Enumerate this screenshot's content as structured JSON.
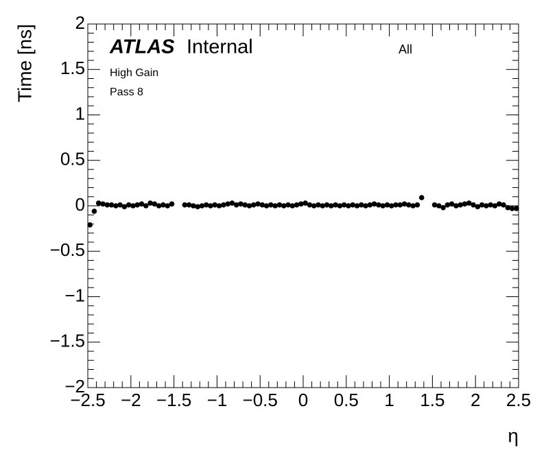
{
  "chart_data": {
    "type": "scatter",
    "ylabel": "Time [ns]",
    "xlabel": "η",
    "annotations": {
      "experiment": "ATLAS",
      "status": "Internal",
      "selection": "All",
      "gain": "High Gain",
      "pass": "Pass 8"
    },
    "xlim": [
      -2.5,
      2.5
    ],
    "ylim": [
      -2,
      2
    ],
    "xticks": [
      {
        "value": -2.5,
        "label": "−2.5"
      },
      {
        "value": -2,
        "label": "−2"
      },
      {
        "value": -1.5,
        "label": "−1.5"
      },
      {
        "value": -1,
        "label": "−1"
      },
      {
        "value": -0.5,
        "label": "−0.5"
      },
      0,
      0.5,
      1,
      1.5,
      2,
      2.5
    ],
    "yticks": [
      {
        "value": -2,
        "label": "−2"
      },
      {
        "value": -1.5,
        "label": "−1.5"
      },
      {
        "value": -1,
        "label": "−1"
      },
      {
        "value": -0.5,
        "label": "−0.5"
      },
      0,
      0.5,
      1,
      1.5,
      2
    ],
    "series": [
      {
        "color": "#000000",
        "x": [
          -2.475,
          -2.425,
          -2.375,
          -2.325,
          -2.275,
          -2.225,
          -2.175,
          -2.125,
          -2.075,
          -2.025,
          -1.975,
          -1.925,
          -1.875,
          -1.825,
          -1.775,
          -1.725,
          -1.675,
          -1.625,
          -1.575,
          -1.525,
          -1.375,
          -1.325,
          -1.275,
          -1.225,
          -1.175,
          -1.125,
          -1.075,
          -1.025,
          -0.975,
          -0.925,
          -0.875,
          -0.825,
          -0.775,
          -0.725,
          -0.675,
          -0.625,
          -0.575,
          -0.525,
          -0.475,
          -0.425,
          -0.375,
          -0.325,
          -0.275,
          -0.225,
          -0.175,
          -0.125,
          -0.075,
          -0.025,
          0.025,
          0.075,
          0.125,
          0.175,
          0.225,
          0.275,
          0.325,
          0.375,
          0.425,
          0.475,
          0.525,
          0.575,
          0.625,
          0.675,
          0.725,
          0.775,
          0.825,
          0.875,
          0.925,
          0.975,
          1.025,
          1.075,
          1.125,
          1.175,
          1.225,
          1.275,
          1.325,
          1.375,
          1.525,
          1.575,
          1.625,
          1.675,
          1.725,
          1.775,
          1.825,
          1.875,
          1.925,
          1.975,
          2.025,
          2.075,
          2.125,
          2.175,
          2.225,
          2.275,
          2.325,
          2.375,
          2.425,
          2.475
        ],
        "values": [
          -0.21,
          -0.06,
          0.03,
          0.02,
          0.01,
          0.01,
          0,
          0.01,
          -0.01,
          0.01,
          0,
          0.01,
          0.02,
          0,
          0.03,
          0.02,
          0,
          0.01,
          0,
          0.02,
          0.01,
          0.01,
          0,
          -0.01,
          0,
          0.01,
          0,
          0.01,
          0,
          0.01,
          0.02,
          0.03,
          0.01,
          0.02,
          0.01,
          0,
          0.01,
          0.02,
          0.01,
          0,
          0.01,
          0,
          0.01,
          0,
          0.01,
          0,
          0.01,
          0.02,
          0.03,
          0.01,
          0,
          0.01,
          0,
          0.01,
          0,
          0.01,
          0,
          0.01,
          0,
          0.01,
          0,
          0.01,
          0,
          0.01,
          0.02,
          0.01,
          0,
          0.01,
          0,
          0.01,
          0.01,
          0.02,
          0.01,
          0,
          0.01,
          0.09,
          0.01,
          0,
          -0.02,
          0.01,
          0.02,
          0,
          0.01,
          0.02,
          0.03,
          0.01,
          -0.01,
          0.01,
          0,
          0.01,
          0,
          0.02,
          0.01,
          -0.02,
          -0.03,
          -0.03
        ]
      }
    ]
  }
}
